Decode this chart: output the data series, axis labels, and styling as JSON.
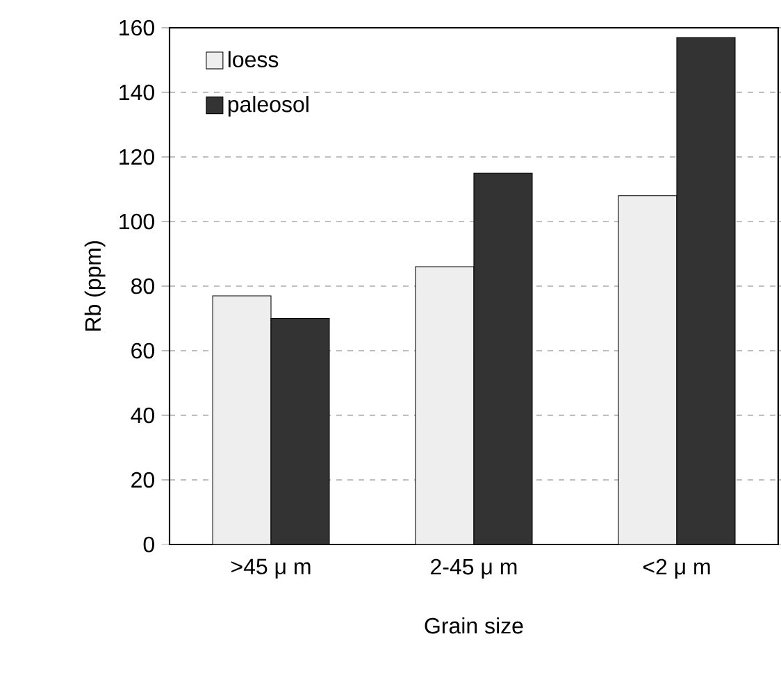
{
  "chart_data": {
    "type": "bar",
    "xlabel": "Grain size",
    "ylabel": "Rb (ppm)",
    "categories": [
      ">45 μ m",
      "2-45 μ m",
      "<2 μ m"
    ],
    "series": [
      {
        "name": "loess",
        "color": "#eeeeee",
        "values": [
          77,
          86,
          108
        ]
      },
      {
        "name": "paleosol",
        "color": "#333333",
        "values": [
          70,
          115,
          157
        ]
      }
    ],
    "ylim": [
      0,
      160
    ],
    "yticks": [
      0,
      20,
      40,
      60,
      80,
      100,
      120,
      140,
      160
    ],
    "grid": "y",
    "legend": "top left"
  }
}
